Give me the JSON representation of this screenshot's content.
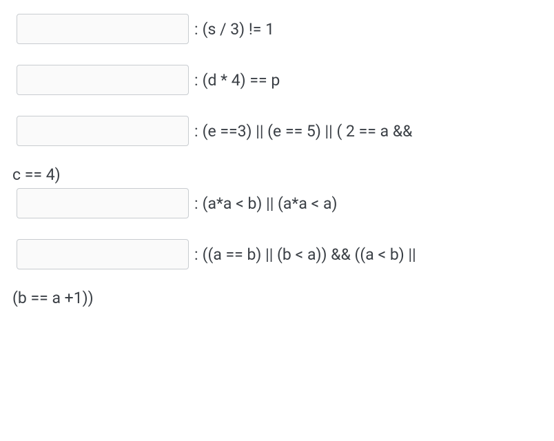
{
  "items": [
    {
      "input_value": "",
      "placeholder": "",
      "expression": "(s / 3) != 1",
      "continuation": null
    },
    {
      "input_value": "",
      "placeholder": "",
      "expression": "(d * 4) == p",
      "continuation": null
    },
    {
      "input_value": "",
      "placeholder": "",
      "expression": "(e ==3) ||  (e == 5) || ( 2 == a &&",
      "continuation": "c == 4)"
    },
    {
      "input_value": "",
      "placeholder": "",
      "expression": " (a*a < b) ||  (a*a < a)",
      "continuation": null
    },
    {
      "input_value": "",
      "placeholder": "",
      "expression": " ((a == b) || (b < a)) && ((a < b) ||",
      "continuation": "(b == a +1))"
    }
  ],
  "separator": ":",
  "colors": {
    "text": "#3a3f45",
    "input_border": "#c8ccd0",
    "input_bg": "#fafafa",
    "page_bg": "#ffffff"
  },
  "typography": {
    "expression_fontsize": 23,
    "input_width": 250,
    "input_height": 44
  }
}
